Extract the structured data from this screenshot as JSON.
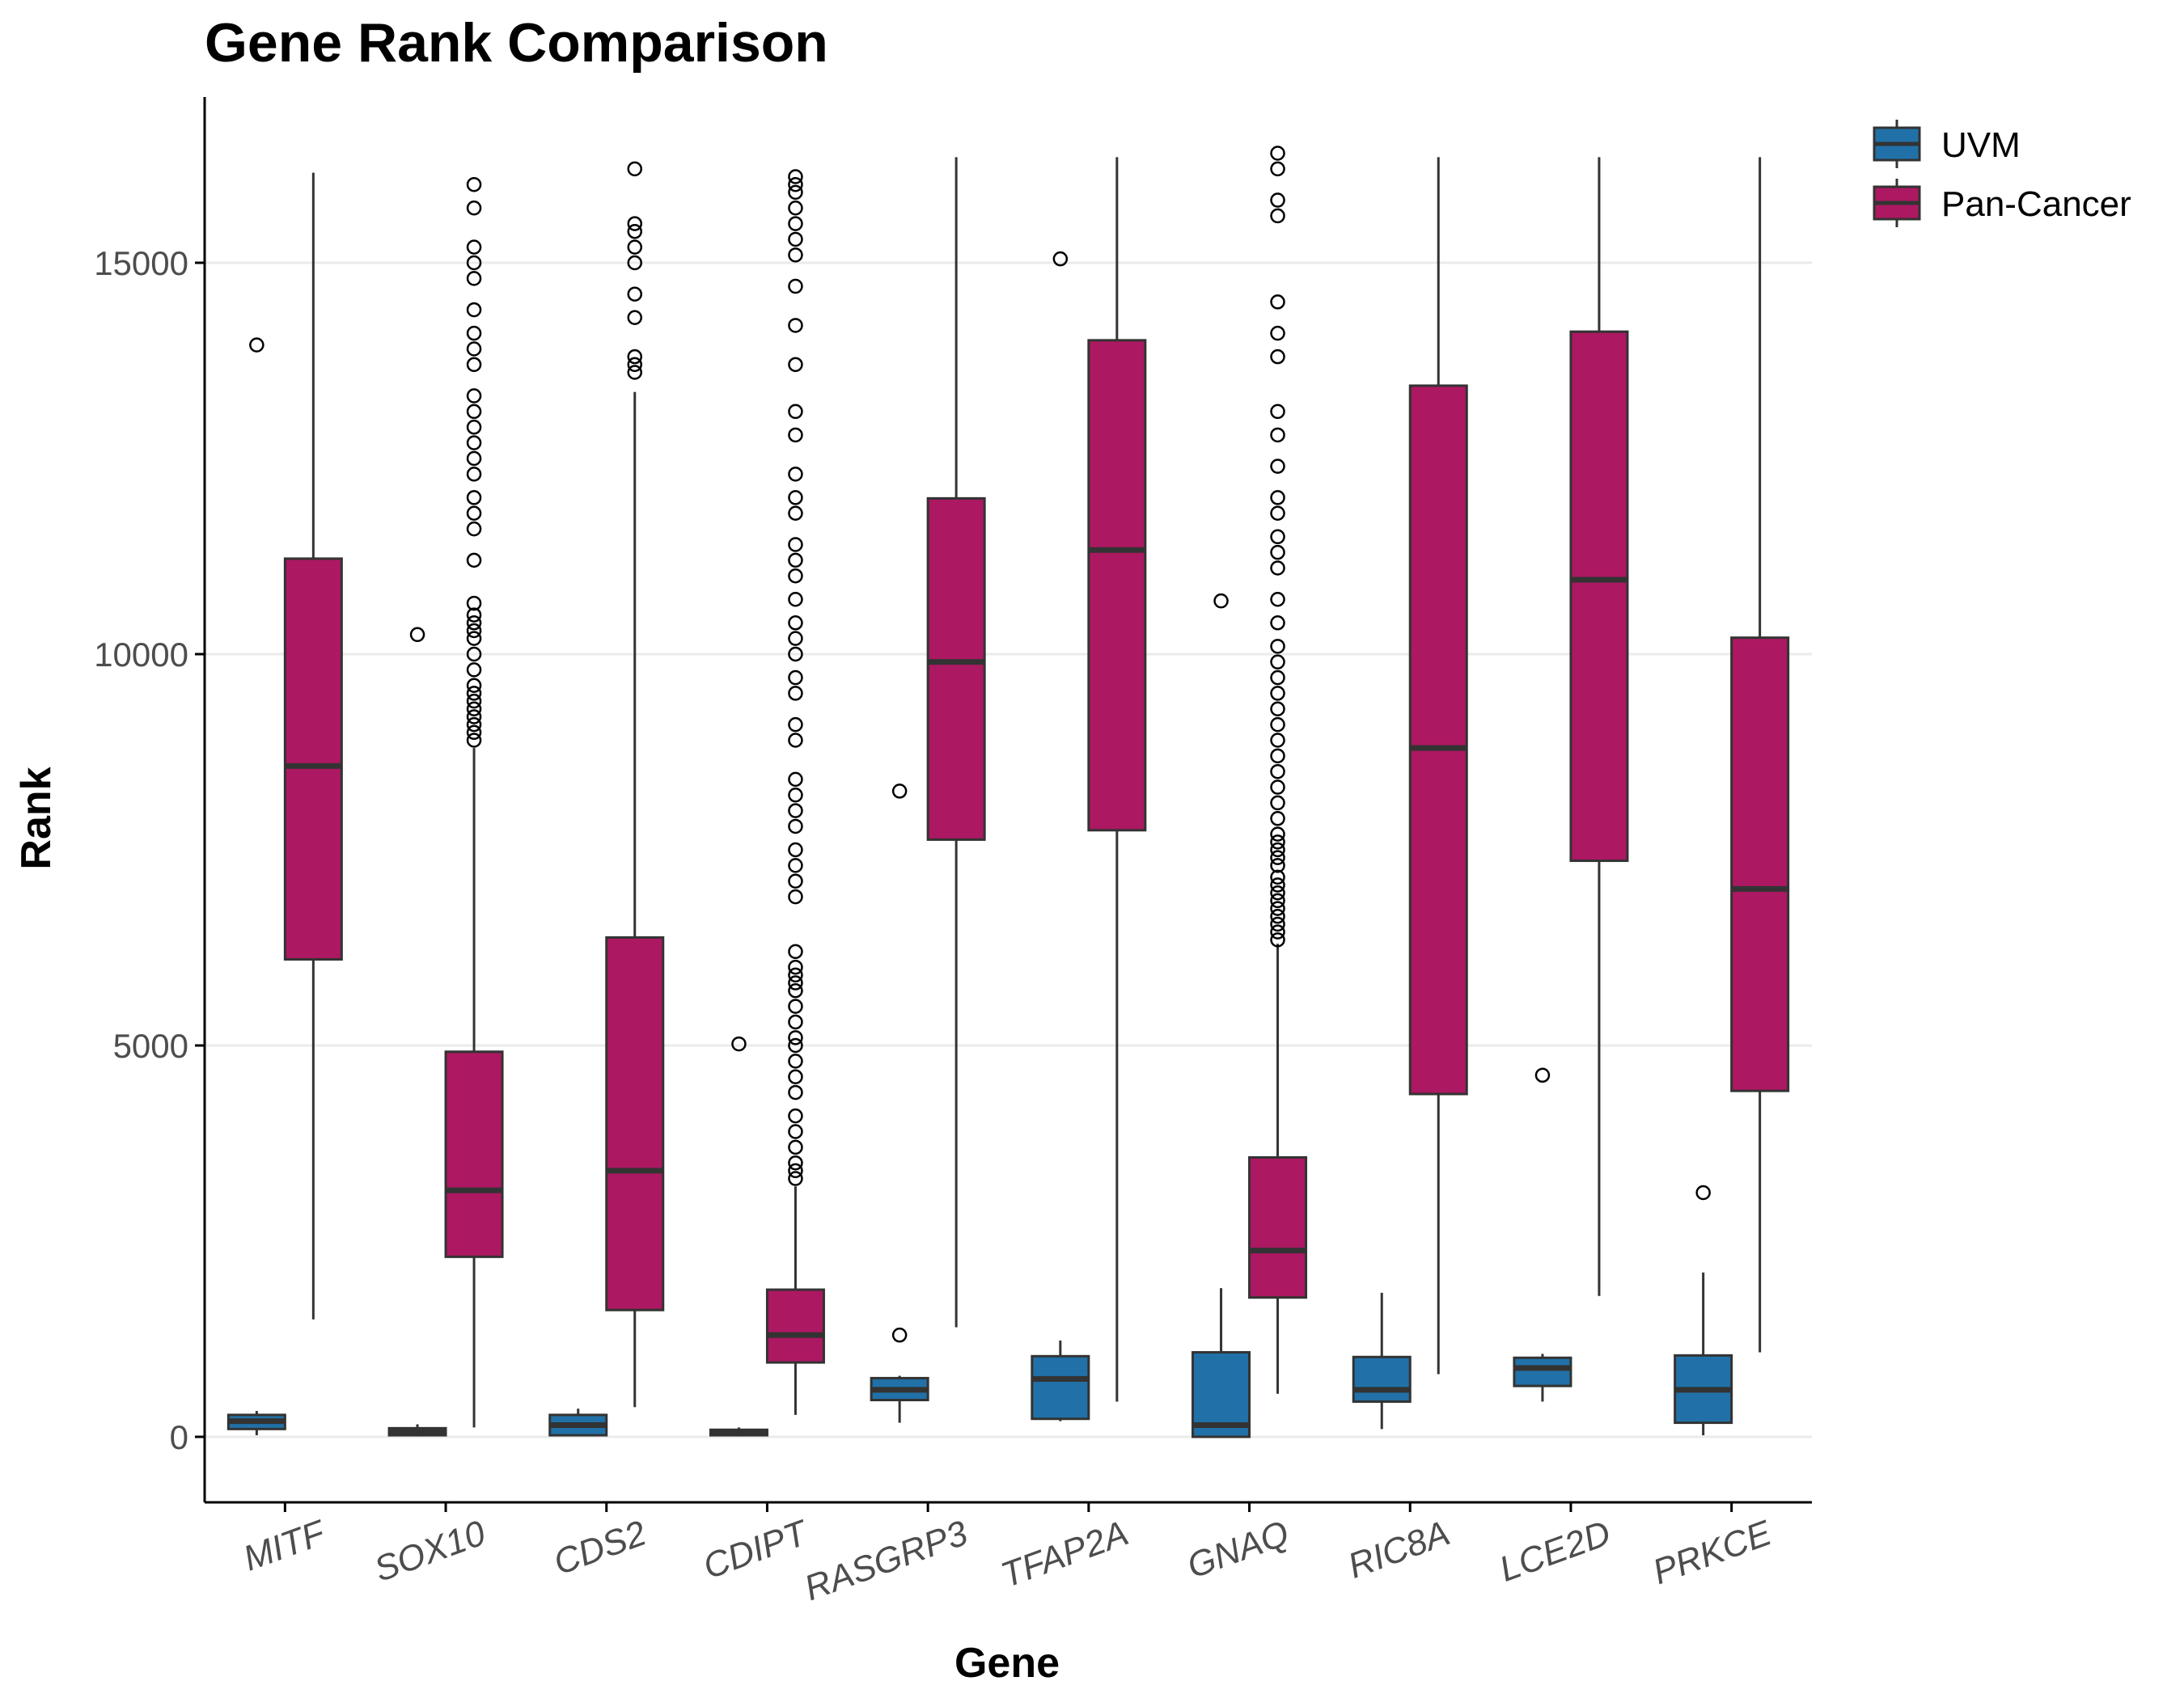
{
  "chart_data": {
    "type": "boxplot",
    "title": "Gene Rank Comparison",
    "xlabel": "Gene",
    "ylabel": "Rank",
    "ylim": [
      -800,
      16900
    ],
    "yticks": [
      0,
      5000,
      10000,
      15000
    ],
    "grid": "horizontal major",
    "legend_position": "right",
    "categories": [
      "MITF",
      "SOX10",
      "CDS2",
      "CDIPT",
      "RASGRP3",
      "TFAP2A",
      "GNAQ",
      "RIC8A",
      "LCE2D",
      "PRKCE"
    ],
    "series": [
      {
        "name": "UVM",
        "color": "#2171a8",
        "boxes": [
          {
            "gene": "MITF",
            "whisker_low": 20,
            "q1": 100,
            "median": 200,
            "q3": 280,
            "whisker_high": 330,
            "outliers": [
              13950
            ]
          },
          {
            "gene": "SOX10",
            "whisker_low": 5,
            "q1": 20,
            "median": 60,
            "q3": 110,
            "whisker_high": 160,
            "outliers": [
              10250
            ]
          },
          {
            "gene": "CDS2",
            "whisker_low": 10,
            "q1": 20,
            "median": 150,
            "q3": 280,
            "whisker_high": 360,
            "outliers": []
          },
          {
            "gene": "CDIPT",
            "whisker_low": 5,
            "q1": 20,
            "median": 60,
            "q3": 90,
            "whisker_high": 120,
            "outliers": [
              5020
            ]
          },
          {
            "gene": "RASGRP3",
            "whisker_low": 180,
            "q1": 470,
            "median": 600,
            "q3": 750,
            "whisker_high": 780,
            "outliers": [
              1300,
              8250
            ]
          },
          {
            "gene": "TFAP2A",
            "whisker_low": 200,
            "q1": 230,
            "median": 740,
            "q3": 1030,
            "whisker_high": 1230,
            "outliers": [
              15050
            ]
          },
          {
            "gene": "GNAQ",
            "whisker_low": 0,
            "q1": 0,
            "median": 150,
            "q3": 1080,
            "whisker_high": 1900,
            "outliers": [
              10680
            ]
          },
          {
            "gene": "RIC8A",
            "whisker_low": 100,
            "q1": 450,
            "median": 600,
            "q3": 1020,
            "whisker_high": 1840,
            "outliers": []
          },
          {
            "gene": "LCE2D",
            "whisker_low": 450,
            "q1": 650,
            "median": 880,
            "q3": 1010,
            "whisker_high": 1060,
            "outliers": [
              4620
            ]
          },
          {
            "gene": "PRKCE",
            "whisker_low": 20,
            "q1": 180,
            "median": 600,
            "q3": 1040,
            "whisker_high": 2100,
            "outliers": [
              3120
            ]
          }
        ]
      },
      {
        "name": "Pan-Cancer",
        "color": "#ad1862",
        "boxes": [
          {
            "gene": "MITF",
            "whisker_low": 1500,
            "q1": 6100,
            "median": 8570,
            "q3": 11220,
            "whisker_high": 16150,
            "outliers": []
          },
          {
            "gene": "SOX10",
            "whisker_low": 120,
            "q1": 2300,
            "median": 3150,
            "q3": 4920,
            "whisker_high": 8800,
            "outliers": [
              8900,
              9000,
              9100,
              9200,
              9300,
              9400,
              9500,
              9600,
              9800,
              10000,
              10200,
              10300,
              10400,
              10500,
              10650,
              11200,
              11600,
              11800,
              12000,
              12300,
              12500,
              12700,
              12900,
              13100,
              13300,
              13700,
              13900,
              14100,
              14400,
              14800,
              15000,
              15200,
              15700,
              16000
            ]
          },
          {
            "gene": "CDS2",
            "whisker_low": 380,
            "q1": 1620,
            "median": 3400,
            "q3": 6380,
            "whisker_high": 13350,
            "outliers": [
              13600,
              13700,
              13800,
              14300,
              14600,
              15000,
              15200,
              15400,
              15500,
              16200
            ]
          },
          {
            "gene": "CDIPT",
            "whisker_low": 280,
            "q1": 950,
            "median": 1300,
            "q3": 1880,
            "whisker_high": 3200,
            "outliers": [
              3300,
              3400,
              3500,
              3700,
              3900,
              4100,
              4400,
              4600,
              4800,
              5000,
              5100,
              5300,
              5500,
              5700,
              5800,
              5900,
              6000,
              6200,
              6900,
              7100,
              7300,
              7500,
              7800,
              8000,
              8200,
              8400,
              8900,
              9100,
              9500,
              9700,
              10000,
              10200,
              10400,
              10700,
              11000,
              11200,
              11400,
              11800,
              12000,
              12300,
              12800,
              13100,
              13700,
              14200,
              14700,
              15100,
              15300,
              15500,
              15700,
              15900,
              16000,
              16100
            ]
          },
          {
            "gene": "RASGRP3",
            "whisker_low": 1400,
            "q1": 7630,
            "median": 9900,
            "q3": 11990,
            "whisker_high": 16350,
            "outliers": []
          },
          {
            "gene": "TFAP2A",
            "whisker_low": 450,
            "q1": 7750,
            "median": 11330,
            "q3": 14010,
            "whisker_high": 16350,
            "outliers": []
          },
          {
            "gene": "GNAQ",
            "whisker_low": 550,
            "q1": 1780,
            "median": 2380,
            "q3": 3570,
            "whisker_high": 6300,
            "outliers": [
              6350,
              6450,
              6550,
              6650,
              6750,
              6850,
              6950,
              7050,
              7150,
              7300,
              7400,
              7500,
              7600,
              7700,
              7900,
              8100,
              8300,
              8500,
              8700,
              8900,
              9100,
              9300,
              9500,
              9700,
              9900,
              10100,
              10400,
              10700,
              11100,
              11300,
              11500,
              11800,
              12000,
              12400,
              12800,
              13100,
              13800,
              14100,
              14500,
              15600,
              15800,
              16200,
              16400
            ]
          },
          {
            "gene": "RIC8A",
            "whisker_low": 800,
            "q1": 4380,
            "median": 8800,
            "q3": 13430,
            "whisker_high": 16350,
            "outliers": []
          },
          {
            "gene": "LCE2D",
            "whisker_low": 1800,
            "q1": 7360,
            "median": 10950,
            "q3": 14120,
            "whisker_high": 16350,
            "outliers": []
          },
          {
            "gene": "PRKCE",
            "whisker_low": 1080,
            "q1": 4420,
            "median": 7000,
            "q3": 10210,
            "whisker_high": 16350,
            "outliers": []
          }
        ]
      }
    ]
  }
}
